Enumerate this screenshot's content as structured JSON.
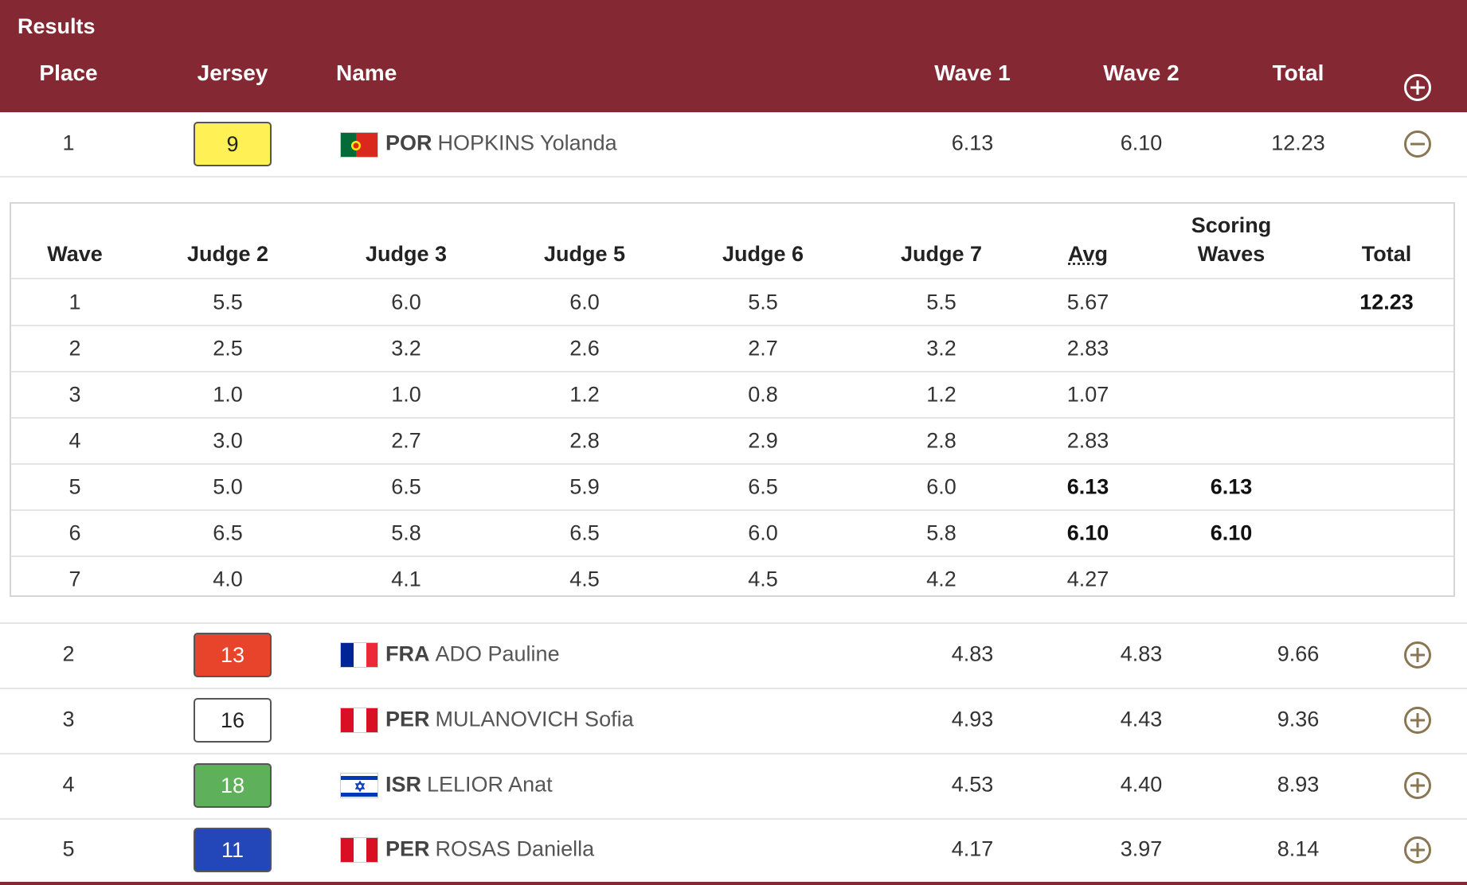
{
  "header": {
    "title": "Results",
    "columns": {
      "place": "Place",
      "jersey": "Jersey",
      "name": "Name",
      "wave1": "Wave 1",
      "wave2": "Wave 2",
      "total": "Total"
    },
    "expand_icon": "plus-circle-icon"
  },
  "athletes": [
    {
      "place": "1",
      "jersey": "9",
      "jersey_color": "#fff056",
      "jersey_text": "#222222",
      "flag": "POR",
      "noc": "POR",
      "name": "HOPKINS Yolanda",
      "wave1": "6.13",
      "wave2": "6.10",
      "total": "12.23",
      "expanded": true
    },
    {
      "place": "2",
      "jersey": "13",
      "jersey_color": "#e8442c",
      "jersey_text": "#ffffff",
      "flag": "FRA",
      "noc": "FRA",
      "name": "ADO Pauline",
      "wave1": "4.83",
      "wave2": "4.83",
      "total": "9.66"
    },
    {
      "place": "3",
      "jersey": "16",
      "jersey_color": "#ffffff",
      "jersey_text": "#222222",
      "flag": "PER",
      "noc": "PER",
      "name": "MULANOVICH Sofia",
      "wave1": "4.93",
      "wave2": "4.43",
      "total": "9.36"
    },
    {
      "place": "4",
      "jersey": "18",
      "jersey_color": "#5fb05a",
      "jersey_text": "#ffffff",
      "flag": "ISR",
      "noc": "ISR",
      "name": "LELIOR Anat",
      "wave1": "4.53",
      "wave2": "4.40",
      "total": "8.93"
    },
    {
      "place": "5",
      "jersey": "11",
      "jersey_color": "#2346b8",
      "jersey_text": "#ffffff",
      "flag": "PER",
      "noc": "PER",
      "name": "ROSAS Daniella",
      "wave1": "4.17",
      "wave2": "3.97",
      "total": "8.14"
    }
  ],
  "detail": {
    "headers": {
      "wave": "Wave",
      "judge2": "Judge 2",
      "judge3": "Judge 3",
      "judge5": "Judge 5",
      "judge6": "Judge 6",
      "judge7": "Judge 7",
      "avg": "Avg",
      "scoring_line1": "Scoring",
      "scoring_line2": "Waves",
      "total": "Total"
    },
    "rows": [
      {
        "wave": "1",
        "j2": "5.5",
        "j3": "6.0",
        "j5": "6.0",
        "j6": "5.5",
        "j7": "5.5",
        "avg": "5.67",
        "scoring": "",
        "total": "12.23"
      },
      {
        "wave": "2",
        "j2": "2.5",
        "j3": "3.2",
        "j5": "2.6",
        "j6": "2.7",
        "j7": "3.2",
        "avg": "2.83",
        "scoring": "",
        "total": ""
      },
      {
        "wave": "3",
        "j2": "1.0",
        "j3": "1.0",
        "j5": "1.2",
        "j6": "0.8",
        "j7": "1.2",
        "avg": "1.07",
        "scoring": "",
        "total": ""
      },
      {
        "wave": "4",
        "j2": "3.0",
        "j3": "2.7",
        "j5": "2.8",
        "j6": "2.9",
        "j7": "2.8",
        "avg": "2.83",
        "scoring": "",
        "total": ""
      },
      {
        "wave": "5",
        "j2": "5.0",
        "j3": "6.5",
        "j5": "5.9",
        "j6": "6.5",
        "j7": "6.0",
        "avg": "6.13",
        "scoring": "6.13",
        "total": "",
        "bold_avg": true
      },
      {
        "wave": "6",
        "j2": "6.5",
        "j3": "5.8",
        "j5": "6.5",
        "j6": "6.0",
        "j7": "5.8",
        "avg": "6.10",
        "scoring": "6.10",
        "total": "",
        "bold_avg": true
      },
      {
        "wave": "7",
        "j2": "4.0",
        "j3": "4.1",
        "j5": "4.5",
        "j6": "4.5",
        "j7": "4.2",
        "avg": "4.27",
        "scoring": "",
        "total": ""
      }
    ]
  },
  "colors": {
    "header_bg": "#842833",
    "icon_brown": "#8a7653"
  }
}
